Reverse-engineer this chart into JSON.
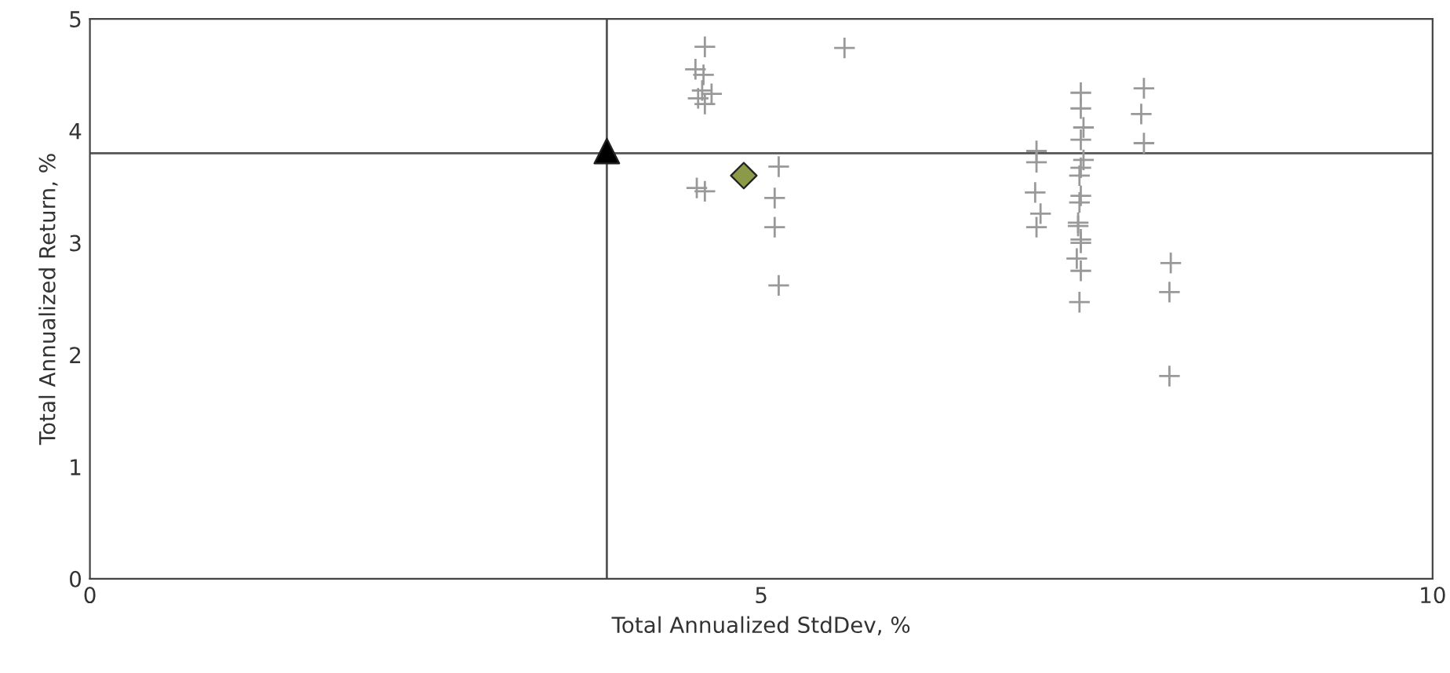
{
  "chart_data": {
    "type": "scatter",
    "xlabel": "Total Annualized StdDev, %",
    "ylabel": "Total Annualized Return, %",
    "xlim": [
      0,
      10
    ],
    "ylim": [
      0,
      5
    ],
    "xticks": [
      0,
      5,
      10
    ],
    "yticks": [
      0,
      1,
      2,
      3,
      4,
      5
    ],
    "grid": false,
    "legend": false,
    "ref_lines": [
      {
        "axis": "x",
        "value": 3.85,
        "color": "#555555"
      },
      {
        "axis": "y",
        "value": 3.8,
        "color": "#555555"
      }
    ],
    "series": [
      {
        "color": "#999999",
        "marker": "cross",
        "x": [
          4.58,
          4.51,
          4.57,
          4.56,
          4.53,
          4.58,
          4.63,
          4.52,
          4.58,
          5.13,
          5.1,
          5.1,
          5.13,
          5.62,
          7.05,
          7.05,
          7.04,
          7.08,
          7.05,
          7.38,
          7.38,
          7.4,
          7.38,
          7.4,
          7.38,
          7.37,
          7.38,
          7.37,
          7.36,
          7.36,
          7.38,
          7.38,
          7.35,
          7.38,
          7.37,
          7.85,
          7.83,
          7.85,
          8.05,
          8.04,
          8.04
        ],
        "values": [
          4.75,
          4.55,
          4.5,
          4.36,
          4.29,
          4.24,
          4.33,
          3.49,
          3.46,
          3.68,
          3.4,
          3.14,
          2.62,
          4.74,
          3.82,
          3.72,
          3.45,
          3.26,
          3.14,
          4.34,
          4.2,
          4.03,
          3.92,
          3.74,
          3.67,
          3.6,
          3.42,
          3.36,
          3.18,
          3.15,
          3.03,
          3.0,
          2.86,
          2.75,
          2.47,
          4.38,
          4.15,
          3.89,
          2.82,
          2.56,
          1.81
        ]
      },
      {
        "color": "#8a9a48",
        "marker": "diamond",
        "x": [
          4.87
        ],
        "values": [
          3.6
        ]
      },
      {
        "color": "#000000",
        "marker": "triangle",
        "x": [
          3.85
        ],
        "values": [
          3.82
        ]
      }
    ]
  }
}
